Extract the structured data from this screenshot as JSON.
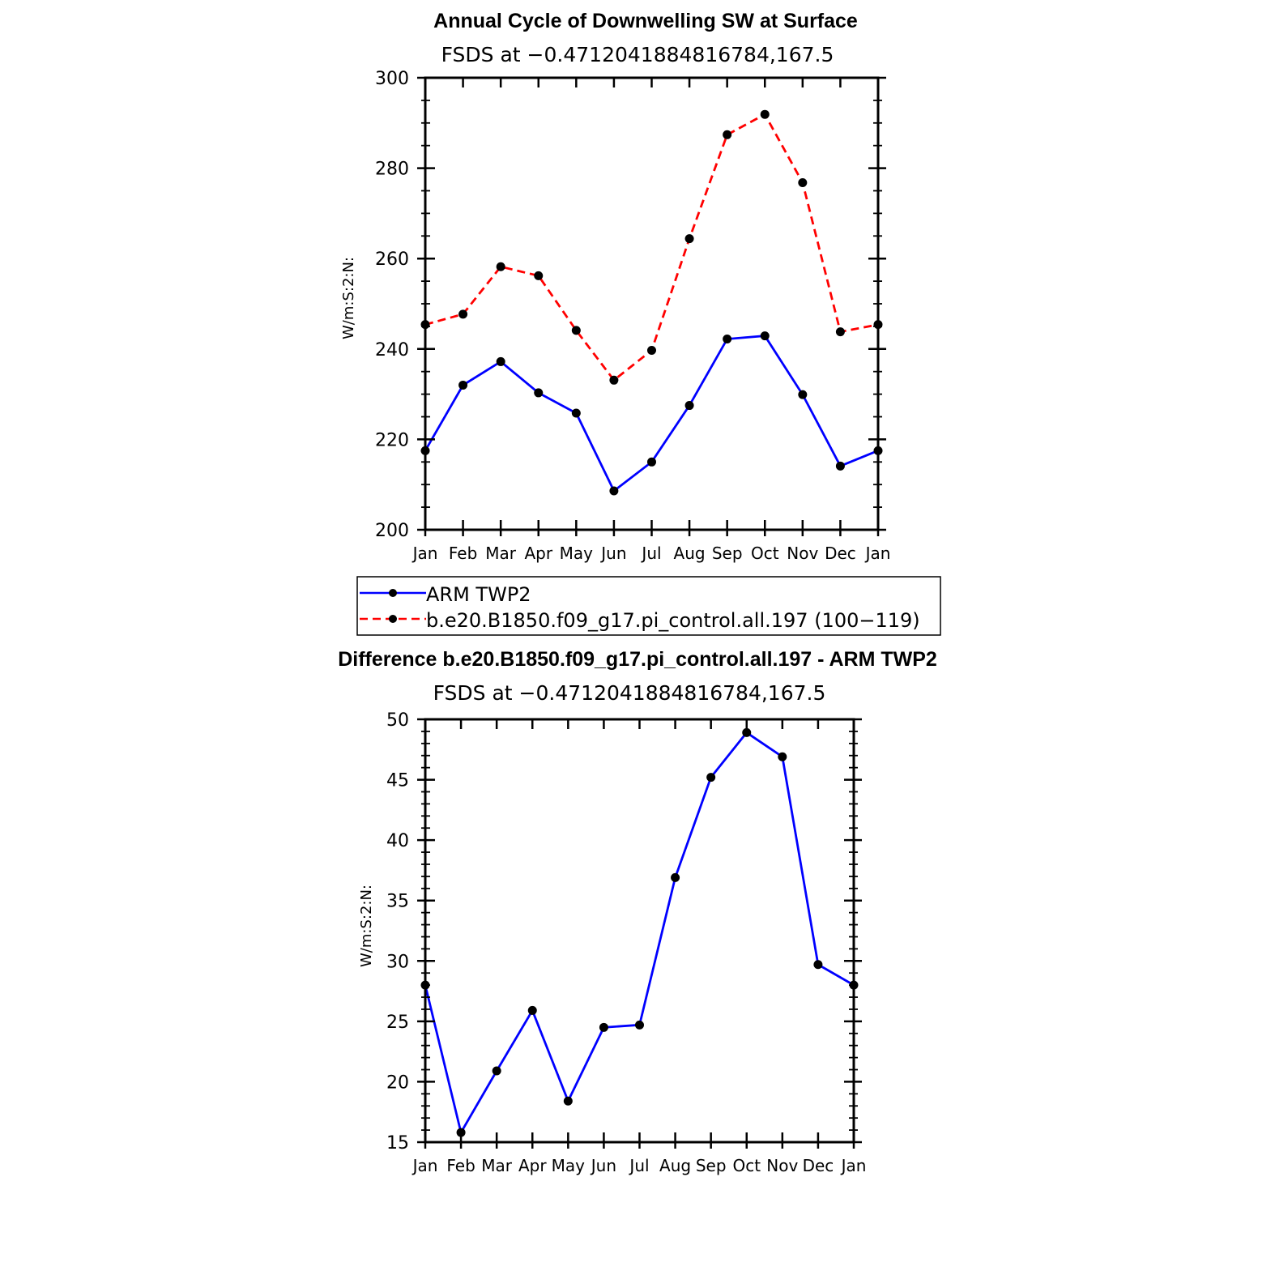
{
  "colors": {
    "obs": "#0000ff",
    "model": "#ff0000",
    "diff": "#0000ff",
    "marker": "#000000"
  },
  "legend": {
    "items": [
      {
        "label": "ARM TWP2",
        "color": "#0000ff",
        "dash": "solid"
      },
      {
        "label": "b.e20.B1850.f09_g17.pi_control.all.197 (100−119)",
        "color": "#ff0000",
        "dash": "dashed"
      }
    ]
  },
  "chart_data": [
    {
      "type": "line",
      "title": "Annual Cycle of Downwelling SW at Surface",
      "subtitle": "FSDS at −0.4712041884816784,167.5",
      "ylabel": "W/m:S:2:N:",
      "xlabel": "",
      "categories": [
        "Jan",
        "Feb",
        "Mar",
        "Apr",
        "May",
        "Jun",
        "Jul",
        "Aug",
        "Sep",
        "Oct",
        "Nov",
        "Dec",
        "Jan"
      ],
      "ylim": [
        200,
        300
      ],
      "yticks": [
        200,
        220,
        240,
        260,
        280,
        300
      ],
      "series": [
        {
          "name": "ARM TWP2",
          "style": "solid",
          "color": "#0000ff",
          "values": [
            217.5,
            232.0,
            237.2,
            230.3,
            225.8,
            208.6,
            215.0,
            227.5,
            242.2,
            242.9,
            229.9,
            214.1,
            217.5
          ]
        },
        {
          "name": "b.e20.B1850.f09_g17.pi_control.all.197 (100−119)",
          "style": "dashed",
          "color": "#ff0000",
          "values": [
            245.4,
            247.7,
            258.2,
            256.2,
            244.1,
            233.1,
            239.7,
            264.4,
            287.4,
            291.9,
            276.8,
            243.8,
            245.4
          ]
        }
      ],
      "legend_position": "below"
    },
    {
      "type": "line",
      "title": "Difference b.e20.B1850.f09_g17.pi_control.all.197 - ARM TWP2",
      "subtitle": "FSDS at −0.4712041884816784,167.5",
      "ylabel": "W/m:S:2:N:",
      "xlabel": "",
      "categories": [
        "Jan",
        "Feb",
        "Mar",
        "Apr",
        "May",
        "Jun",
        "Jul",
        "Aug",
        "Sep",
        "Oct",
        "Nov",
        "Dec",
        "Jan"
      ],
      "ylim": [
        15,
        50
      ],
      "yticks": [
        15,
        20,
        25,
        30,
        35,
        40,
        45,
        50
      ],
      "series": [
        {
          "style": "solid",
          "color": "#0000ff",
          "values": [
            28.0,
            15.8,
            20.9,
            25.9,
            18.4,
            24.5,
            24.7,
            36.9,
            45.2,
            48.9,
            46.9,
            29.7,
            28.0
          ]
        }
      ]
    }
  ]
}
